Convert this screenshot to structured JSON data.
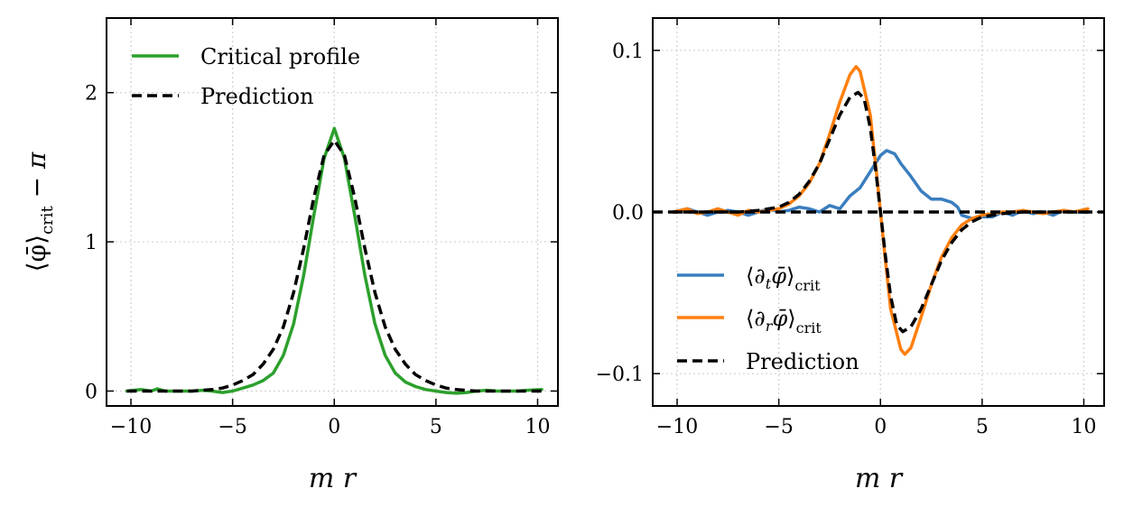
{
  "chart_data": [
    {
      "type": "line",
      "panel": "left",
      "xlabel": "m r",
      "ylabel": "⟨φ̄⟩crit − π",
      "xlim": [
        -11.2,
        11.0
      ],
      "ylim": [
        -0.1,
        2.5
      ],
      "xticks": [
        -10,
        -5,
        0,
        5,
        10
      ],
      "xtick_labels": [
        "−10",
        "−5",
        "0",
        "5",
        "10"
      ],
      "yticks": [
        0,
        1,
        2
      ],
      "ytick_labels": [
        "0",
        "1",
        "2"
      ],
      "grid": true,
      "legend_position": "top-left",
      "series": [
        {
          "name": "Critical profile",
          "color": "#2ca02c",
          "style": "solid",
          "x": [
            -10.2,
            -9.5,
            -9,
            -8.7,
            -8.3,
            -8,
            -7.5,
            -7,
            -6.5,
            -6,
            -5.5,
            -5,
            -4.5,
            -4,
            -3.5,
            -3,
            -2.5,
            -2,
            -1.5,
            -1,
            -0.5,
            0,
            0.5,
            1,
            1.5,
            2,
            2.5,
            3,
            3.5,
            4,
            4.5,
            5,
            5.5,
            6,
            6.5,
            7,
            7.5,
            8,
            8.5,
            9,
            9.5,
            10.2
          ],
          "y": [
            0.0,
            0.01,
            0.0,
            0.015,
            0.0,
            0.0,
            0.0,
            0.0,
            0.005,
            0.0,
            -0.01,
            0.0,
            0.02,
            0.04,
            0.07,
            0.12,
            0.24,
            0.45,
            0.78,
            1.18,
            1.56,
            1.76,
            1.56,
            1.18,
            0.78,
            0.45,
            0.24,
            0.12,
            0.06,
            0.03,
            0.01,
            0.0,
            -0.01,
            -0.015,
            -0.01,
            0.0,
            0.005,
            0.0,
            0.0,
            0.0,
            0.005,
            0.01
          ]
        },
        {
          "name": "Prediction",
          "color": "#000000",
          "style": "dashed",
          "x": [
            -10.2,
            -9,
            -8,
            -7,
            -6,
            -5.5,
            -5,
            -4.5,
            -4,
            -3.5,
            -3,
            -2.5,
            -2,
            -1.5,
            -1,
            -0.5,
            0,
            0.5,
            1,
            1.5,
            2,
            2.5,
            3,
            3.5,
            4,
            4.5,
            5,
            5.5,
            6,
            7,
            8,
            9,
            10.2
          ],
          "y": [
            0.0,
            0.0,
            0.0,
            0.0,
            0.01,
            0.02,
            0.04,
            0.07,
            0.11,
            0.18,
            0.28,
            0.43,
            0.66,
            0.96,
            1.3,
            1.58,
            1.68,
            1.58,
            1.3,
            0.96,
            0.66,
            0.43,
            0.28,
            0.18,
            0.11,
            0.07,
            0.04,
            0.02,
            0.01,
            0.0,
            0.0,
            0.0,
            0.0
          ]
        }
      ]
    },
    {
      "type": "line",
      "panel": "right",
      "xlabel": "m r",
      "ylabel": "",
      "xlim": [
        -11.2,
        11.0
      ],
      "ylim": [
        -0.12,
        0.12
      ],
      "xticks": [
        -10,
        -5,
        0,
        5,
        10
      ],
      "xtick_labels": [
        "−10",
        "−5",
        "0",
        "5",
        "10"
      ],
      "yticks": [
        -0.1,
        0.0,
        0.1
      ],
      "ytick_labels": [
        "−0.1",
        "0.0",
        "0.1"
      ],
      "grid": true,
      "legend_position": "bottom-left",
      "series": [
        {
          "name": "⟨∂tφ̄⟩crit",
          "color": "#3a7ebf",
          "style": "solid",
          "x": [
            -10.2,
            -9.5,
            -9,
            -8.5,
            -8,
            -7.5,
            -7,
            -6.5,
            -6,
            -5.5,
            -5,
            -4.5,
            -4,
            -3.5,
            -3,
            -2.5,
            -2,
            -1.5,
            -1,
            -0.5,
            0,
            0.3,
            0.7,
            1,
            1.5,
            2,
            2.5,
            3,
            3.5,
            3.8,
            4,
            4.5,
            5,
            5.5,
            6,
            6.5,
            7,
            7.5,
            8,
            8.5,
            9,
            9.5,
            10.2
          ],
          "y": [
            0.0,
            0.002,
            0.0,
            -0.002,
            0.0,
            0.001,
            0.0,
            -0.002,
            0.0,
            0.002,
            0.0,
            0.001,
            0.003,
            0.002,
            0.0,
            0.004,
            0.002,
            0.01,
            0.015,
            0.025,
            0.035,
            0.038,
            0.036,
            0.03,
            0.022,
            0.013,
            0.008,
            0.008,
            0.006,
            0.003,
            -0.002,
            -0.004,
            -0.003,
            -0.003,
            0.0,
            -0.002,
            0.001,
            -0.001,
            0.0,
            -0.002,
            0.001,
            0.0,
            0.0
          ]
        },
        {
          "name": "⟨∂rφ̄⟩crit",
          "color": "#ff7f0e",
          "style": "solid",
          "x": [
            -10.2,
            -9.5,
            -9,
            -8.5,
            -8,
            -7.5,
            -7,
            -6.5,
            -6,
            -5.5,
            -5,
            -4.5,
            -4,
            -3.5,
            -3,
            -2.5,
            -2,
            -1.5,
            -1.2,
            -1,
            -0.5,
            -0.2,
            0,
            0.2,
            0.5,
            1,
            1.2,
            1.5,
            2,
            2.5,
            3,
            3.5,
            4,
            4.5,
            5,
            5.5,
            6,
            6.5,
            7,
            7.5,
            8,
            8.5,
            9,
            9.5,
            10.2
          ],
          "y": [
            0.0,
            0.002,
            -0.001,
            0.0,
            0.002,
            0.0,
            -0.002,
            0.001,
            0.0,
            0.001,
            0.002,
            0.005,
            0.01,
            0.018,
            0.03,
            0.048,
            0.068,
            0.085,
            0.09,
            0.087,
            0.06,
            0.025,
            0.0,
            -0.025,
            -0.06,
            -0.085,
            -0.088,
            -0.084,
            -0.065,
            -0.045,
            -0.028,
            -0.016,
            -0.008,
            -0.004,
            -0.002,
            -0.001,
            0.0,
            0.0,
            0.001,
            0.0,
            -0.001,
            0.0,
            0.001,
            0.0,
            0.002
          ]
        },
        {
          "name": "Prediction",
          "color": "#000000",
          "style": "dashed",
          "x": [
            -10.2,
            -9,
            -8,
            -7,
            -6,
            -5,
            -4.5,
            -4,
            -3.5,
            -3,
            -2.5,
            -2,
            -1.5,
            -1.1,
            -0.8,
            -0.5,
            -0.25,
            0,
            0.25,
            0.5,
            0.8,
            1.1,
            1.5,
            2,
            2.5,
            3,
            3.5,
            4,
            4.5,
            5,
            6,
            7,
            8,
            9,
            10.2
          ],
          "y": [
            0.0,
            0.0,
            0.0,
            0.0,
            0.001,
            0.003,
            0.006,
            0.011,
            0.019,
            0.03,
            0.045,
            0.06,
            0.071,
            0.074,
            0.07,
            0.052,
            0.028,
            0.0,
            -0.028,
            -0.052,
            -0.07,
            -0.074,
            -0.071,
            -0.06,
            -0.045,
            -0.03,
            -0.019,
            -0.011,
            -0.006,
            -0.003,
            -0.001,
            0.0,
            0.0,
            0.0,
            0.0
          ]
        },
        {
          "name": "zero-line",
          "color": "#000000",
          "style": "dashed",
          "legend": false,
          "x": [
            -11.2,
            11.0
          ],
          "y": [
            0.0,
            0.0
          ]
        }
      ]
    }
  ],
  "legends": {
    "left": [
      "Critical profile",
      "Prediction"
    ],
    "right": [
      "⟨∂tφ̄⟩crit",
      "⟨∂rφ̄⟩crit",
      "Prediction"
    ]
  }
}
